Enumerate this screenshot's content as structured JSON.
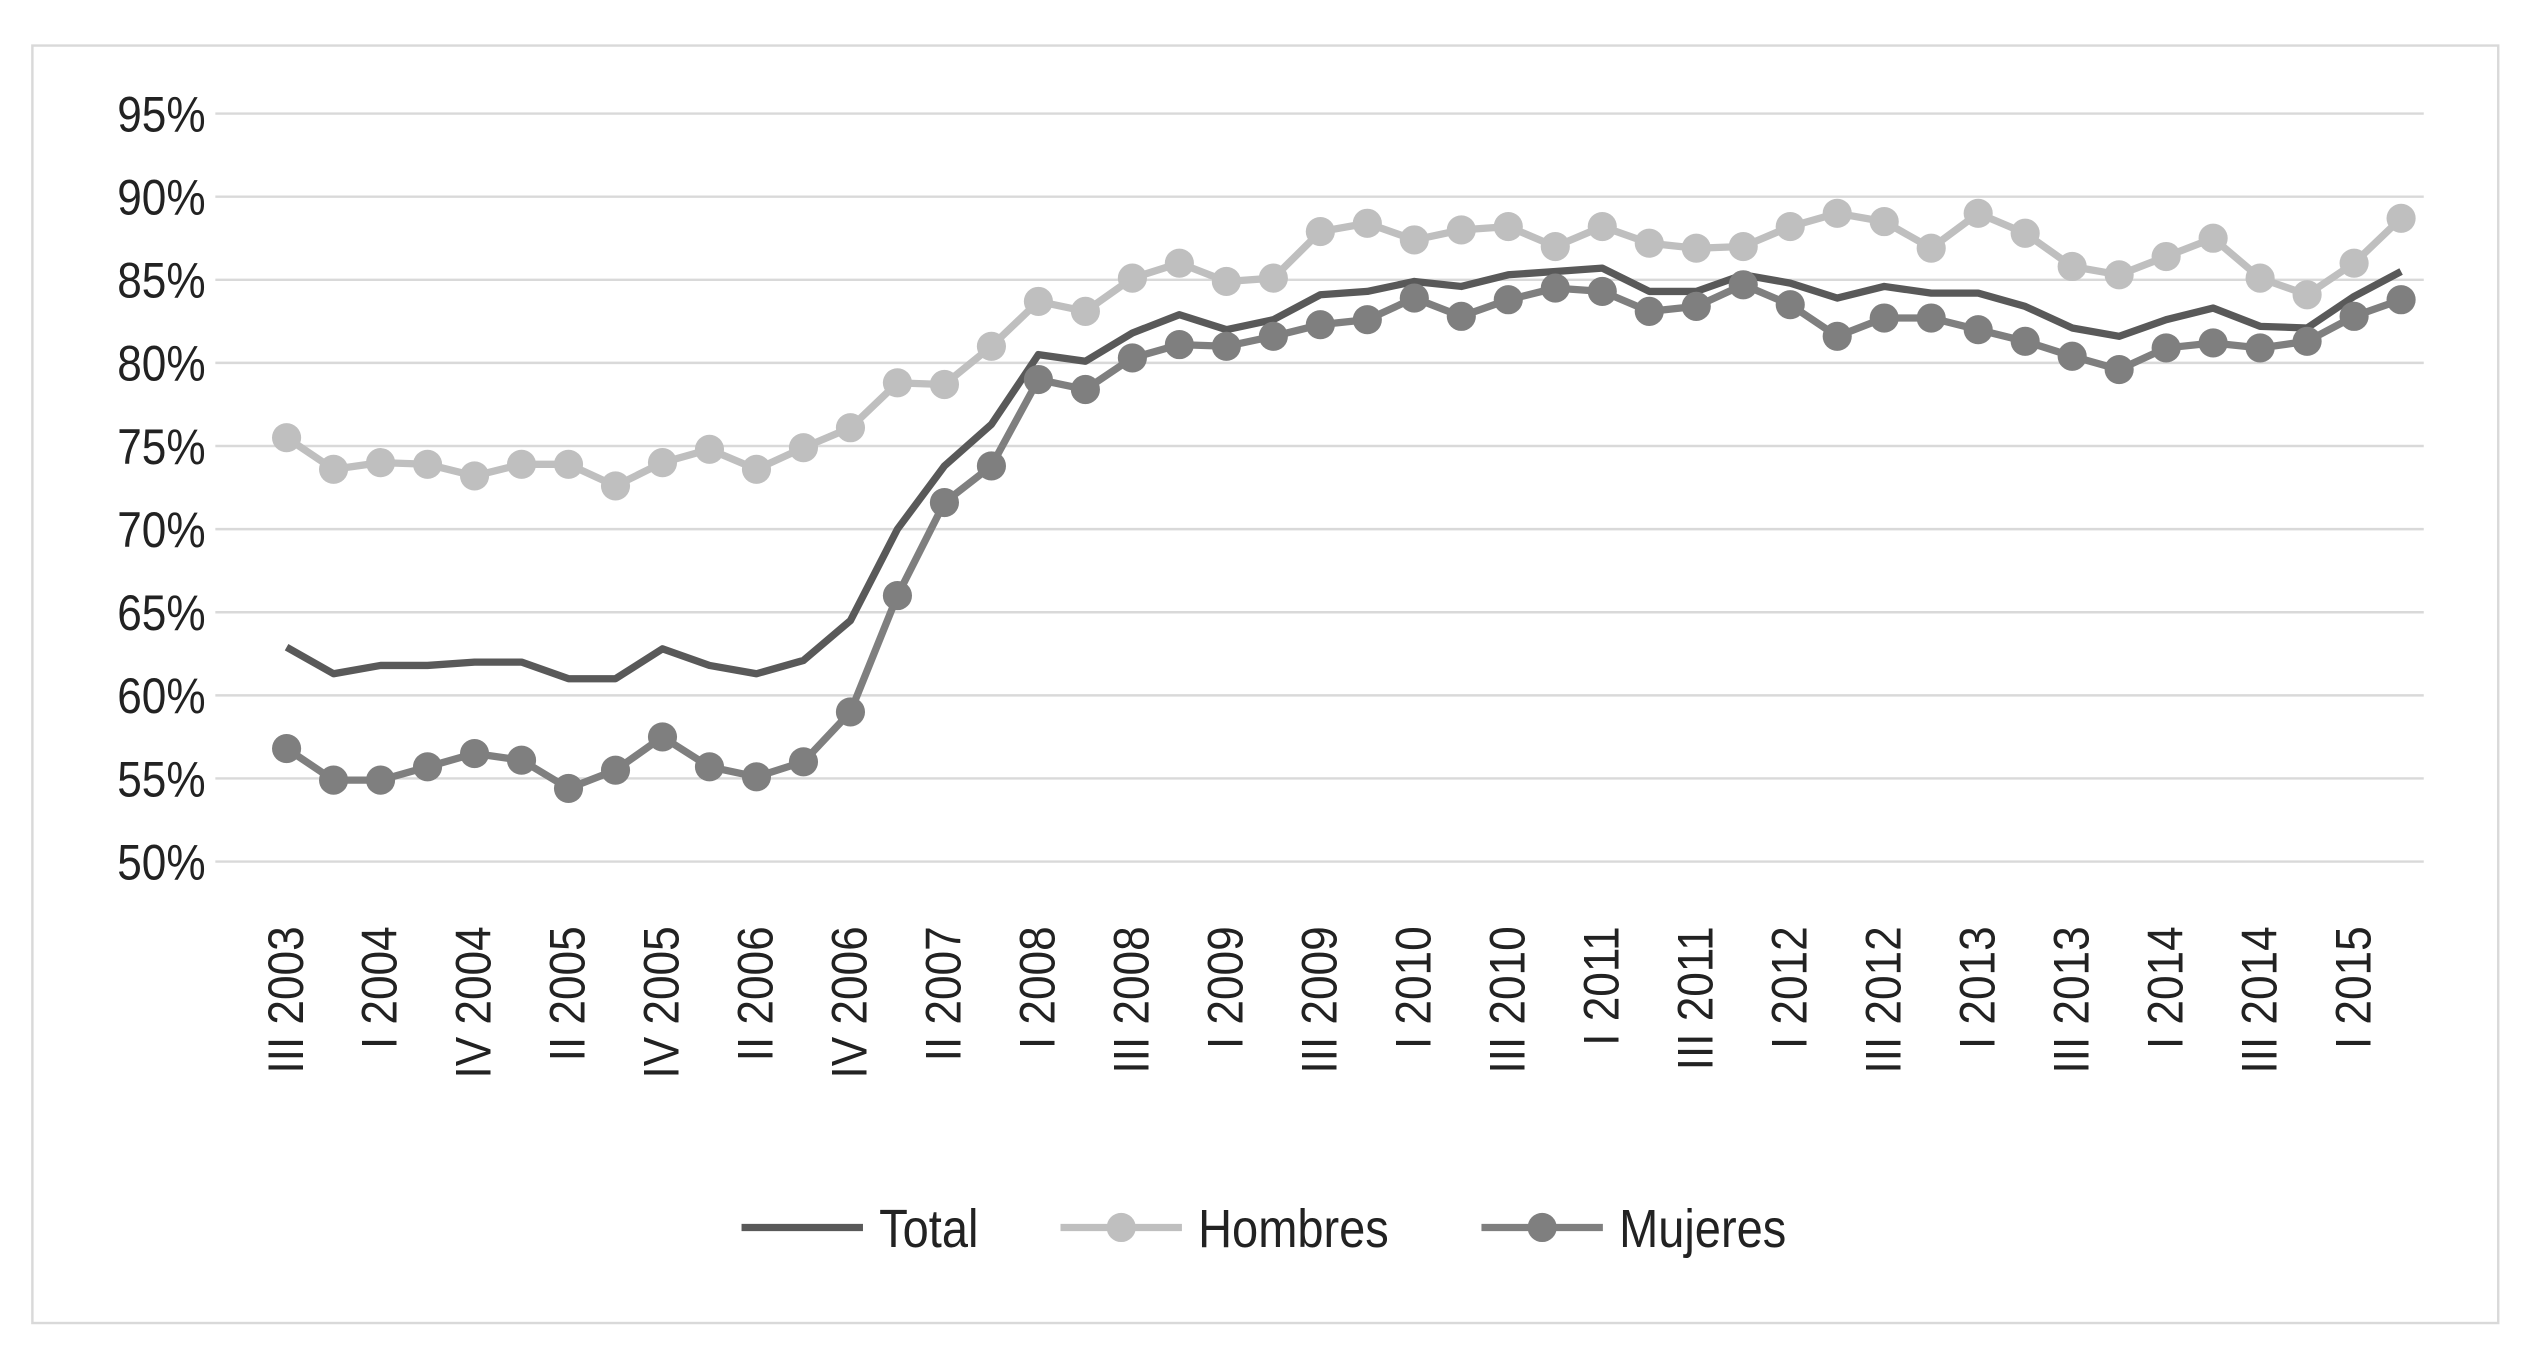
{
  "chart_data": {
    "type": "line",
    "categories": [
      "III 2003",
      null,
      "I 2004",
      null,
      "IV 2004",
      null,
      "II 2005",
      null,
      "IV 2005",
      null,
      "II 2006",
      null,
      "IV 2006",
      null,
      "II 2007",
      null,
      "I 2008",
      null,
      "III 2008",
      null,
      "I 2009",
      null,
      "III 2009",
      null,
      "I 2010",
      null,
      "III 2010",
      null,
      "I 2011",
      null,
      "III 2011",
      null,
      "I 2012",
      null,
      "III 2012",
      null,
      "I 2013",
      null,
      "III 2013",
      null,
      "I 2014",
      null,
      "III 2014",
      null,
      "I 2015",
      null
    ],
    "series": [
      {
        "name": "Total",
        "color": "#595959",
        "markers": false,
        "values": [
          62.9,
          61.3,
          61.8,
          61.8,
          62,
          62,
          61,
          61,
          62.8,
          61.8,
          61.3,
          62.1,
          64.5,
          70,
          73.8,
          76.3,
          80.5,
          80.1,
          81.8,
          82.9,
          82,
          82.6,
          84.1,
          84.3,
          84.9,
          84.6,
          85.3,
          85.5,
          85.7,
          84.3,
          84.3,
          85.3,
          84.8,
          83.9,
          84.6,
          84.2,
          84.2,
          83.4,
          82.1,
          81.6,
          82.6,
          83.3,
          82.2,
          82.1,
          84,
          85.5
        ]
      },
      {
        "name": "Hombres",
        "color": "#bfbfbf",
        "markers": true,
        "values": [
          75.5,
          73.6,
          74,
          73.9,
          73.2,
          73.9,
          73.9,
          72.6,
          74,
          74.8,
          73.6,
          74.9,
          76.1,
          78.8,
          78.7,
          81,
          83.7,
          83.1,
          85.1,
          86,
          84.9,
          85.1,
          87.9,
          88.4,
          87.4,
          88,
          88.2,
          87,
          88.2,
          87.2,
          86.9,
          87,
          88.2,
          89,
          88.5,
          86.9,
          89,
          87.8,
          85.8,
          85.3,
          86.4,
          87.5,
          85.1,
          84.1,
          86,
          88.7
        ]
      },
      {
        "name": "Mujeres",
        "color": "#7f7f7f",
        "markers": true,
        "values": [
          56.8,
          54.9,
          54.9,
          55.7,
          56.5,
          56.1,
          54.4,
          55.5,
          57.5,
          55.7,
          55.1,
          56,
          59,
          66,
          71.6,
          73.8,
          79,
          78.4,
          80.3,
          81.1,
          81,
          81.6,
          82.3,
          82.6,
          83.9,
          82.8,
          83.8,
          84.5,
          84.3,
          83.1,
          83.4,
          84.7,
          83.5,
          81.6,
          82.7,
          82.7,
          82,
          81.3,
          80.4,
          79.6,
          80.9,
          81.2,
          80.9,
          81.3,
          82.8,
          83.8
        ]
      }
    ],
    "ylim": [
      50,
      95
    ],
    "yticks": [
      {
        "value": 50,
        "label": "50%"
      },
      {
        "value": 55,
        "label": "55%"
      },
      {
        "value": 60,
        "label": "60%"
      },
      {
        "value": 65,
        "label": "65%"
      },
      {
        "value": 70,
        "label": "70%"
      },
      {
        "value": 75,
        "label": "75%"
      },
      {
        "value": 80,
        "label": "80%"
      },
      {
        "value": 85,
        "label": "85%"
      },
      {
        "value": 90,
        "label": "90%"
      },
      {
        "value": 95,
        "label": "95%"
      }
    ],
    "grid": true,
    "legend": "bottom"
  }
}
